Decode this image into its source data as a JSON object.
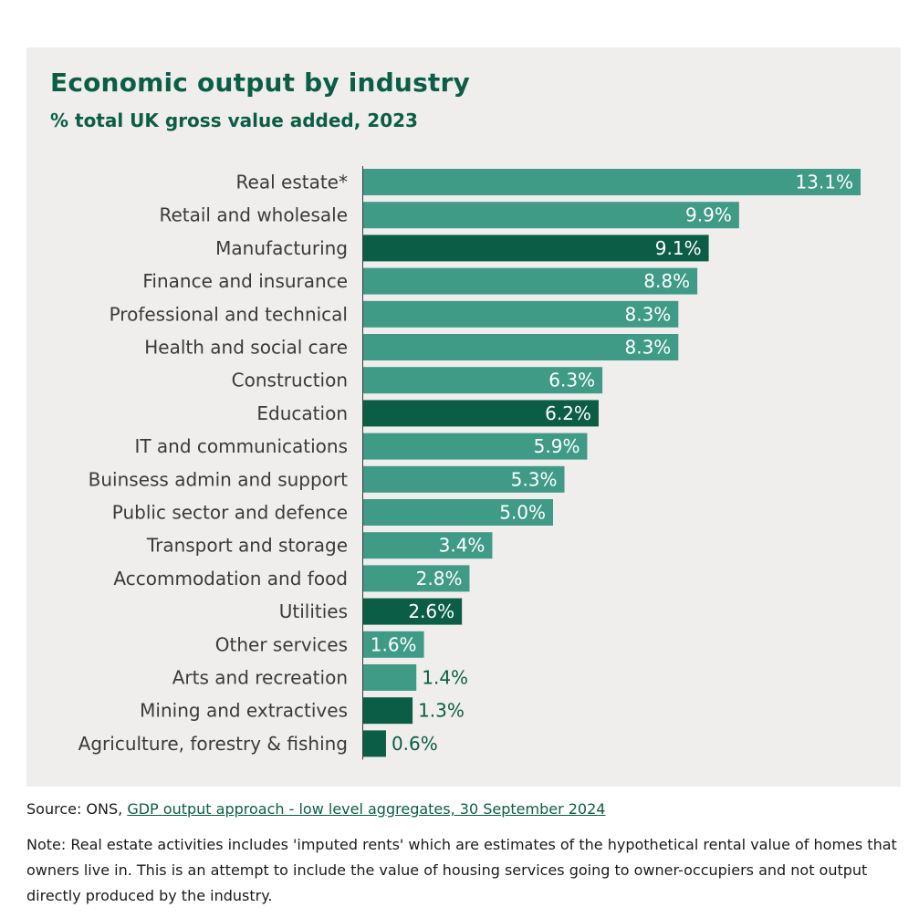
{
  "chart_data": {
    "type": "bar",
    "orientation": "horizontal",
    "title": "Economic output by industry",
    "subtitle": "% total UK gross value added, 2023",
    "categories": [
      "Real estate*",
      "Retail and wholesale",
      "Manufacturing",
      "Finance and insurance",
      "Professional and technical",
      "Health and social care",
      "Construction",
      "Education",
      "IT and communications",
      "Buinsess admin and support",
      "Public sector and defence",
      "Transport and storage",
      "Accommodation and food",
      "Utilities",
      "Other services",
      "Arts and recreation",
      "Mining and extractives",
      "Agriculture, forestry & fishing"
    ],
    "values": [
      13.1,
      9.9,
      9.1,
      8.8,
      8.3,
      8.3,
      6.3,
      6.2,
      5.9,
      5.3,
      5.0,
      3.4,
      2.8,
      2.6,
      1.6,
      1.4,
      1.3,
      0.6
    ],
    "value_labels": [
      "13.1%",
      "9.9%",
      "9.1%",
      "8.8%",
      "8.3%",
      "8.3%",
      "6.3%",
      "6.2%",
      "5.9%",
      "5.3%",
      "5.0%",
      "3.4%",
      "2.8%",
      "2.6%",
      "1.6%",
      "1.4%",
      "1.3%",
      "0.6%"
    ],
    "highlighted": [
      false,
      false,
      true,
      false,
      false,
      false,
      false,
      true,
      false,
      false,
      false,
      false,
      false,
      true,
      false,
      false,
      true,
      true
    ],
    "xlim": [
      0,
      13.1
    ],
    "grid": false,
    "legend": "none",
    "colors": {
      "bar": "#3f9b86",
      "bar_highlight": "#0b5e45",
      "label_inside": "#ffffff",
      "label_outside": "#0b5e45",
      "category_text": "#3a3a3a",
      "axis": "#3a3a3a"
    }
  },
  "source": {
    "prefix": "Source: ONS, ",
    "link_text": "GDP output approach - low level aggregates, 30 September 2024"
  },
  "note": "Note: Real estate activities includes 'imputed rents' which are estimates of the hypothetical rental value of homes that owners live in. This is an attempt to include the value of housing services going to owner-occupiers and not output directly produced by the industry."
}
